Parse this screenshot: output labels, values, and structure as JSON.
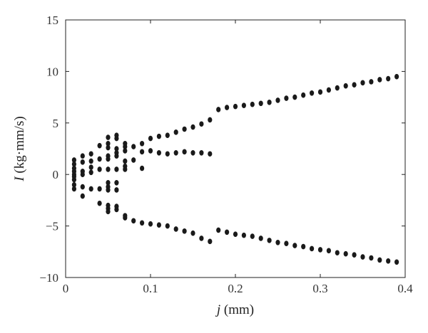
{
  "chart_data": {
    "type": "scatter",
    "title": "",
    "xlabel": {
      "var": "j",
      "unit": " (mm)"
    },
    "ylabel": {
      "var": "I",
      "unit": " (kg·mm/s)"
    },
    "xlim": [
      0,
      0.4
    ],
    "ylim": [
      -10,
      15
    ],
    "xticks": [
      0,
      0.1,
      0.2,
      0.3,
      0.4
    ],
    "xtick_labels": [
      "0",
      "0.1",
      "0.2",
      "0.3",
      "0.4"
    ],
    "yticks": [
      -10,
      -5,
      0,
      5,
      10,
      15
    ],
    "ytick_labels": [
      "−10",
      "−5",
      "0",
      "5",
      "10",
      "15"
    ],
    "grid": false,
    "legend": "none",
    "marker_color": "#1a1a1a",
    "series": [
      {
        "points": [
          [
            0.01,
            1.4
          ],
          [
            0.01,
            1.0
          ],
          [
            0.01,
            0.6
          ],
          [
            0.01,
            0.3
          ],
          [
            0.01,
            0.0
          ],
          [
            0.01,
            -0.2
          ],
          [
            0.01,
            -0.5
          ],
          [
            0.01,
            -1.0
          ],
          [
            0.01,
            -1.4
          ],
          [
            0.02,
            1.8
          ],
          [
            0.02,
            1.2
          ],
          [
            0.02,
            0.3
          ],
          [
            0.02,
            0.0
          ],
          [
            0.02,
            -1.2
          ],
          [
            0.02,
            -2.1
          ],
          [
            0.03,
            2.0
          ],
          [
            0.03,
            1.3
          ],
          [
            0.03,
            0.7
          ],
          [
            0.03,
            0.2
          ],
          [
            0.03,
            -1.4
          ],
          [
            0.04,
            2.8
          ],
          [
            0.04,
            1.5
          ],
          [
            0.04,
            0.5
          ],
          [
            0.04,
            -1.4
          ],
          [
            0.04,
            -2.8
          ],
          [
            0.05,
            3.6
          ],
          [
            0.05,
            3.0
          ],
          [
            0.05,
            2.6
          ],
          [
            0.05,
            1.8
          ],
          [
            0.05,
            1.5
          ],
          [
            0.05,
            0.5
          ],
          [
            0.05,
            -0.8
          ],
          [
            0.05,
            -1.2
          ],
          [
            0.05,
            -1.5
          ],
          [
            0.05,
            -3.0
          ],
          [
            0.05,
            -3.3
          ],
          [
            0.05,
            -3.6
          ],
          [
            0.06,
            3.8
          ],
          [
            0.06,
            3.5
          ],
          [
            0.06,
            2.5
          ],
          [
            0.06,
            2.1
          ],
          [
            0.06,
            1.8
          ],
          [
            0.06,
            0.5
          ],
          [
            0.06,
            -0.8
          ],
          [
            0.06,
            -1.5
          ],
          [
            0.06,
            -3.1
          ],
          [
            0.06,
            -3.4
          ],
          [
            0.07,
            3.0
          ],
          [
            0.07,
            2.7
          ],
          [
            0.07,
            2.3
          ],
          [
            0.07,
            1.3
          ],
          [
            0.07,
            0.8
          ],
          [
            0.07,
            0.5
          ],
          [
            0.07,
            -4.0
          ],
          [
            0.07,
            -4.2
          ],
          [
            0.08,
            2.7
          ],
          [
            0.08,
            1.4
          ],
          [
            0.08,
            -4.5
          ],
          [
            0.09,
            3.0
          ],
          [
            0.09,
            2.2
          ],
          [
            0.09,
            0.6
          ],
          [
            0.09,
            -4.7
          ],
          [
            0.1,
            3.5
          ],
          [
            0.1,
            2.3
          ],
          [
            0.1,
            -4.8
          ],
          [
            0.11,
            3.7
          ],
          [
            0.11,
            2.1
          ],
          [
            0.11,
            -4.9
          ],
          [
            0.12,
            3.8
          ],
          [
            0.12,
            2.0
          ],
          [
            0.12,
            -5.0
          ],
          [
            0.13,
            4.1
          ],
          [
            0.13,
            2.1
          ],
          [
            0.13,
            -5.3
          ],
          [
            0.14,
            4.4
          ],
          [
            0.14,
            2.2
          ],
          [
            0.14,
            -5.5
          ],
          [
            0.15,
            4.6
          ],
          [
            0.15,
            2.1
          ],
          [
            0.15,
            -5.7
          ],
          [
            0.16,
            4.9
          ],
          [
            0.16,
            2.1
          ],
          [
            0.16,
            -6.2
          ],
          [
            0.17,
            5.3
          ],
          [
            0.17,
            2.0
          ],
          [
            0.17,
            -6.5
          ],
          [
            0.18,
            6.3
          ],
          [
            0.18,
            -5.4
          ],
          [
            0.19,
            6.5
          ],
          [
            0.19,
            -5.6
          ],
          [
            0.2,
            6.6
          ],
          [
            0.2,
            -5.8
          ],
          [
            0.21,
            6.7
          ],
          [
            0.21,
            -5.9
          ],
          [
            0.22,
            6.8
          ],
          [
            0.22,
            -6.0
          ],
          [
            0.23,
            6.9
          ],
          [
            0.23,
            -6.2
          ],
          [
            0.24,
            7.0
          ],
          [
            0.24,
            -6.4
          ],
          [
            0.25,
            7.2
          ],
          [
            0.25,
            -6.6
          ],
          [
            0.26,
            7.4
          ],
          [
            0.26,
            -6.7
          ],
          [
            0.27,
            7.5
          ],
          [
            0.27,
            -6.9
          ],
          [
            0.28,
            7.7
          ],
          [
            0.28,
            -7.0
          ],
          [
            0.29,
            7.9
          ],
          [
            0.29,
            -7.2
          ],
          [
            0.3,
            8.0
          ],
          [
            0.3,
            -7.3
          ],
          [
            0.31,
            8.2
          ],
          [
            0.31,
            -7.4
          ],
          [
            0.32,
            8.4
          ],
          [
            0.32,
            -7.6
          ],
          [
            0.33,
            8.6
          ],
          [
            0.33,
            -7.7
          ],
          [
            0.34,
            8.7
          ],
          [
            0.34,
            -7.8
          ],
          [
            0.35,
            8.9
          ],
          [
            0.35,
            -8.0
          ],
          [
            0.36,
            9.0
          ],
          [
            0.36,
            -8.1
          ],
          [
            0.37,
            9.2
          ],
          [
            0.37,
            -8.3
          ],
          [
            0.38,
            9.3
          ],
          [
            0.38,
            -8.4
          ],
          [
            0.39,
            9.5
          ],
          [
            0.39,
            -8.5
          ]
        ]
      }
    ]
  }
}
